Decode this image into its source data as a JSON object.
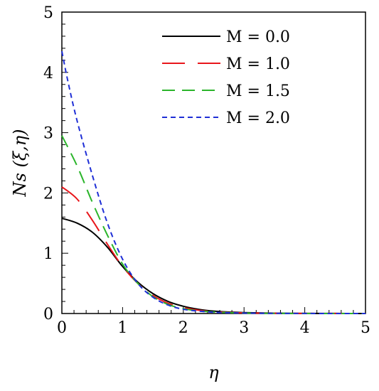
{
  "chart_data": {
    "type": "line",
    "xlabel": "η",
    "ylabel": "Ns (ξ,η)",
    "xlim": [
      0,
      5
    ],
    "ylim": [
      0,
      5
    ],
    "xticks": [
      "0",
      "1",
      "2",
      "3",
      "4",
      "5"
    ],
    "yticks": [
      "0",
      "1",
      "2",
      "3",
      "4",
      "5"
    ],
    "legend_position": "top-right",
    "grid": false,
    "series": [
      {
        "name": "M = 0.0",
        "color": "#000000",
        "dash": "solid",
        "x": [
          0,
          0.25,
          0.5,
          0.75,
          1.0,
          1.25,
          1.5,
          1.75,
          2.0,
          2.25,
          2.5,
          2.75,
          3.0,
          3.5,
          4.0,
          4.5,
          5.0
        ],
        "y": [
          1.58,
          1.5,
          1.35,
          1.1,
          0.78,
          0.52,
          0.33,
          0.2,
          0.12,
          0.07,
          0.04,
          0.025,
          0.015,
          0.006,
          0.002,
          0.001,
          0.0
        ]
      },
      {
        "name": "M = 1.0",
        "color": "#e8161b",
        "dash": "long",
        "x": [
          0,
          0.25,
          0.5,
          0.75,
          1.0,
          1.25,
          1.5,
          1.75,
          2.0,
          2.25,
          2.5,
          2.75,
          3.0,
          3.5,
          4.0,
          4.5,
          5.0
        ],
        "y": [
          2.1,
          1.9,
          1.55,
          1.15,
          0.78,
          0.5,
          0.3,
          0.17,
          0.1,
          0.055,
          0.03,
          0.018,
          0.01,
          0.004,
          0.002,
          0.001,
          0.0
        ]
      },
      {
        "name": "M = 1.5",
        "color": "#2bb52b",
        "dash": "medium",
        "x": [
          0,
          0.25,
          0.5,
          0.75,
          1.0,
          1.25,
          1.5,
          1.75,
          2.0,
          2.25,
          2.5,
          2.75,
          3.0,
          3.5,
          4.0,
          4.5,
          5.0
        ],
        "y": [
          2.95,
          2.45,
          1.85,
          1.3,
          0.82,
          0.5,
          0.28,
          0.15,
          0.08,
          0.045,
          0.025,
          0.014,
          0.008,
          0.003,
          0.001,
          0.0005,
          0.0
        ]
      },
      {
        "name": "M = 2.0",
        "color": "#1f2fd6",
        "dash": "short",
        "x": [
          0,
          0.1,
          0.25,
          0.5,
          0.75,
          1.0,
          1.25,
          1.5,
          1.75,
          2.0,
          2.25,
          2.5,
          2.75,
          3.0,
          3.5,
          4.0,
          4.5,
          5.0
        ],
        "y": [
          4.35,
          3.85,
          3.2,
          2.3,
          1.5,
          0.9,
          0.5,
          0.27,
          0.14,
          0.07,
          0.04,
          0.02,
          0.012,
          0.007,
          0.003,
          0.001,
          0.0005,
          0.0
        ]
      }
    ]
  }
}
